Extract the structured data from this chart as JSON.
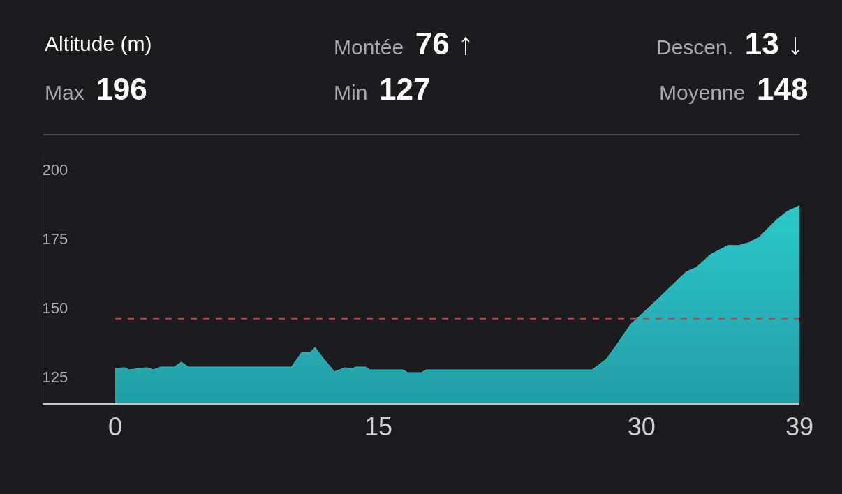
{
  "chart_data": {
    "type": "area",
    "title": "Altitude (m)",
    "annotations": [
      "Montée",
      "76 ↑",
      "Descen.",
      "13 ↓",
      "Max",
      "196",
      "Min",
      "127",
      "Moyenne",
      "148"
    ],
    "x": [
      0,
      0.52,
      0.79,
      1.79,
      2.18,
      2.58,
      3.37,
      3.77,
      4.17,
      10.04,
      10.63,
      11.11,
      11.39,
      11.9,
      12.5,
      13.1,
      13.49,
      13.69,
      14.29,
      14.48,
      16.39,
      16.67,
      17.46,
      17.74,
      27.18,
      27.98,
      28.57,
      29.37,
      30.36,
      32.54,
      33.13,
      33.93,
      34.92,
      35.52,
      36.11,
      36.71,
      37.1,
      37.7,
      38.29,
      39
    ],
    "series": [
      {
        "color": "#2bc8cc",
        "values": [
          128,
          128.3,
          127.5,
          128.3,
          127.5,
          128.5,
          128.5,
          130.3,
          128.5,
          128.5,
          133.8,
          133.8,
          135.6,
          131.3,
          126.8,
          128.3,
          127.8,
          128.5,
          128.5,
          127.5,
          127.5,
          126.5,
          126.5,
          127.5,
          127.5,
          131.3,
          136.4,
          143.9,
          149.7,
          162.9,
          164.6,
          169.2,
          172.5,
          172.5,
          173.5,
          175.5,
          178,
          181.8,
          184.8,
          186.9
        ]
      }
    ],
    "xlim": [
      -4.1,
      39
    ],
    "xticks": [
      0,
      15,
      30,
      39
    ],
    "ylim": [
      115.4,
      205
    ],
    "yticks": [
      125,
      150,
      175,
      200
    ],
    "ref_lines": [
      {
        "axis": "y",
        "value": 146,
        "color": "#d43a3a",
        "line_style": "dashed"
      }
    ],
    "grid": false,
    "legend": false
  }
}
